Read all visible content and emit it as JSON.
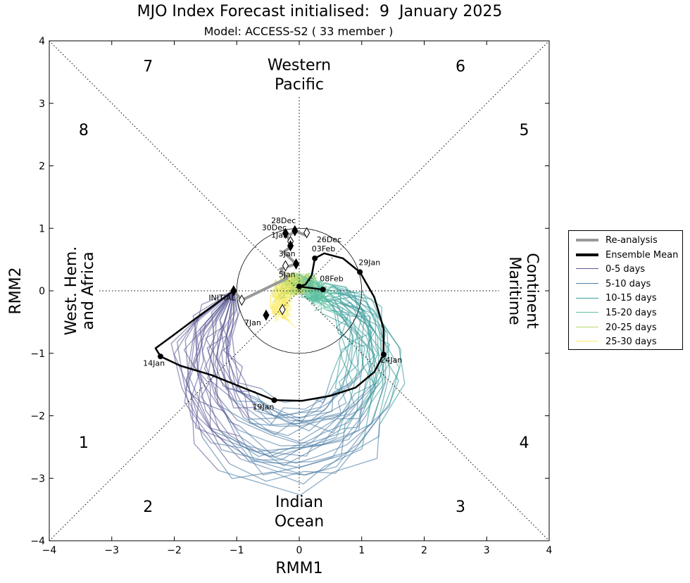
{
  "title": "MJO Index Forecast initialised:  9  January 2025",
  "subtitle": "Model: ACCESS-S2 ( 33 member )",
  "chart_data": {
    "type": "line",
    "xlabel": "RMM1",
    "ylabel": "RMM2",
    "xlim": [
      -4,
      4
    ],
    "ylim": [
      -4,
      4
    ],
    "x_ticks": [
      "−4",
      "−3",
      "−2",
      "−1",
      "0",
      "1",
      "2",
      "3",
      "4"
    ],
    "y_ticks": [
      "−4",
      "−3",
      "−2",
      "−1",
      "0",
      "1",
      "2",
      "3",
      "4"
    ],
    "grid": false,
    "legend_position": "right",
    "phase_numbers": [
      {
        "label": "1",
        "x": -3.45,
        "y": -2.42
      },
      {
        "label": "2",
        "x": -2.42,
        "y": -3.45
      },
      {
        "label": "3",
        "x": 2.58,
        "y": -3.45
      },
      {
        "label": "4",
        "x": 3.6,
        "y": -2.42
      },
      {
        "label": "5",
        "x": 3.6,
        "y": 2.58
      },
      {
        "label": "6",
        "x": 2.58,
        "y": 3.6
      },
      {
        "label": "7",
        "x": -2.42,
        "y": 3.6
      },
      {
        "label": "8",
        "x": -3.45,
        "y": 2.58
      }
    ],
    "regions": {
      "top": [
        "Western",
        "Pacific"
      ],
      "bottom": [
        "Indian",
        "Ocean"
      ],
      "left": [
        "West. Hem.",
        "and Africa"
      ],
      "right": [
        "Maritime",
        "Continent"
      ]
    },
    "reanalysis": {
      "name": "Re-analysis",
      "color": "#999999",
      "points": [
        {
          "x": 0.12,
          "y": 0.88
        },
        {
          "x": -0.07,
          "y": 0.96
        },
        {
          "x": -0.14,
          "y": 0.9
        },
        {
          "x": -0.22,
          "y": 0.92
        },
        {
          "x": -0.14,
          "y": 0.78
        },
        {
          "x": -0.14,
          "y": 0.7
        },
        {
          "x": -0.25,
          "y": 0.62
        },
        {
          "x": -0.05,
          "y": 0.43
        },
        {
          "x": -0.3,
          "y": 0.35
        },
        {
          "x": -0.2,
          "y": 0.2
        },
        {
          "x": -0.92,
          "y": -0.15
        },
        {
          "x": -1.05,
          "y": 0.0
        }
      ],
      "hollow_markers": [
        {
          "x": 0.12,
          "y": 0.93
        },
        {
          "x": -0.14,
          "y": 0.79
        },
        {
          "x": -0.22,
          "y": 0.4
        },
        {
          "x": -0.92,
          "y": -0.15
        },
        {
          "x": -0.27,
          "y": -0.3
        }
      ],
      "filled_markers": [
        {
          "x": -0.07,
          "y": 0.96
        },
        {
          "x": -0.22,
          "y": 0.92
        },
        {
          "x": -0.14,
          "y": 0.72
        },
        {
          "x": -0.05,
          "y": 0.43
        },
        {
          "x": -0.53,
          "y": -0.39
        },
        {
          "x": -1.05,
          "y": 0.0
        }
      ]
    },
    "ensemble_mean": {
      "name": "Ensemble Mean",
      "color": "#000000",
      "points": [
        {
          "x": -1.05,
          "y": 0.0
        },
        {
          "x": -1.6,
          "y": -0.4
        },
        {
          "x": -2.0,
          "y": -0.7
        },
        {
          "x": -2.3,
          "y": -0.92
        },
        {
          "x": -2.22,
          "y": -1.05
        },
        {
          "x": -1.9,
          "y": -1.2
        },
        {
          "x": -1.4,
          "y": -1.35
        },
        {
          "x": -0.9,
          "y": -1.55
        },
        {
          "x": -0.4,
          "y": -1.75
        },
        {
          "x": 0.05,
          "y": -1.76
        },
        {
          "x": 0.5,
          "y": -1.68
        },
        {
          "x": 0.9,
          "y": -1.55
        },
        {
          "x": 1.2,
          "y": -1.3
        },
        {
          "x": 1.35,
          "y": -1.02
        },
        {
          "x": 1.35,
          "y": -0.6
        },
        {
          "x": 1.2,
          "y": -0.1
        },
        {
          "x": 0.97,
          "y": 0.3
        },
        {
          "x": 0.7,
          "y": 0.52
        },
        {
          "x": 0.4,
          "y": 0.6
        },
        {
          "x": 0.25,
          "y": 0.52
        },
        {
          "x": 0.2,
          "y": 0.25
        },
        {
          "x": 0.1,
          "y": 0.1
        },
        {
          "x": 0.0,
          "y": 0.07
        },
        {
          "x": 0.15,
          "y": 0.05
        },
        {
          "x": 0.38,
          "y": 0.02
        }
      ],
      "markers": [
        {
          "x": -2.22,
          "y": -1.05
        },
        {
          "x": -0.4,
          "y": -1.75
        },
        {
          "x": 1.35,
          "y": -1.02
        },
        {
          "x": 0.97,
          "y": 0.3
        },
        {
          "x": 0.25,
          "y": 0.52
        },
        {
          "x": 0.0,
          "y": 0.07
        },
        {
          "x": 0.38,
          "y": 0.02
        }
      ]
    },
    "date_labels": [
      {
        "text": "28Dec",
        "x": -0.45,
        "y": 1.08
      },
      {
        "text": "30Dec",
        "x": -0.6,
        "y": 0.97
      },
      {
        "text": "1Jan",
        "x": -0.45,
        "y": 0.85
      },
      {
        "text": "26Dec",
        "x": 0.28,
        "y": 0.78
      },
      {
        "text": "03Feb",
        "x": 0.2,
        "y": 0.63
      },
      {
        "text": "3Jan",
        "x": -0.33,
        "y": 0.55
      },
      {
        "text": "29Jan",
        "x": 0.95,
        "y": 0.41
      },
      {
        "text": "5Jan",
        "x": -0.33,
        "y": 0.22
      },
      {
        "text": "08Feb",
        "x": 0.33,
        "y": 0.15
      },
      {
        "text": "INITIAL",
        "x": -1.45,
        "y": -0.15
      },
      {
        "text": "7Jan",
        "x": -0.88,
        "y": -0.55
      },
      {
        "text": "14Jan",
        "x": -2.5,
        "y": -1.2
      },
      {
        "text": "24Jan",
        "x": 1.3,
        "y": -1.15
      },
      {
        "text": "19Jan",
        "x": -0.75,
        "y": -1.9
      }
    ],
    "legend": [
      {
        "label": "Re-analysis",
        "color": "#999999",
        "width": 4
      },
      {
        "label": "Ensemble Mean",
        "color": "#000000",
        "width": 4
      },
      {
        "label": "0-5 days",
        "color": "#5d5c96",
        "width": 1.5
      },
      {
        "label": "5-10 days",
        "color": "#4f7fa6",
        "width": 1.5
      },
      {
        "label": "10-15 days",
        "color": "#3a9b9b",
        "width": 1.5
      },
      {
        "label": "15-20 days",
        "color": "#5ebfa1",
        "width": 1.5
      },
      {
        "label": "20-25 days",
        "color": "#b5d96a",
        "width": 1.5
      },
      {
        "label": "25-30 days",
        "color": "#fbed6e",
        "width": 1.5
      }
    ]
  }
}
